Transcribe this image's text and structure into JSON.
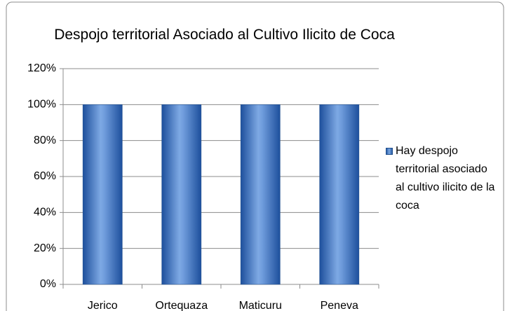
{
  "chart_data": {
    "type": "bar",
    "title": "Despojo territorial Asociado al Cultivo Ilicito de Coca",
    "categories": [
      "Jerico",
      "Ortequaza",
      "Maticuru",
      "Peneva"
    ],
    "series": [
      {
        "name": "Hay despojo territorial asociado al cultivo ilicito de la coca",
        "color": "#4f81bd",
        "values": [
          100,
          100,
          100,
          100
        ]
      }
    ],
    "ylim": [
      0,
      120
    ],
    "yticks": [
      {
        "value": 0,
        "label": "0%"
      },
      {
        "value": 20,
        "label": "20%"
      },
      {
        "value": 40,
        "label": "40%"
      },
      {
        "value": 60,
        "label": "60%"
      },
      {
        "value": 80,
        "label": "80%"
      },
      {
        "value": 100,
        "label": "100%"
      },
      {
        "value": 120,
        "label": "120%"
      }
    ],
    "grid": true,
    "legend": "right"
  }
}
